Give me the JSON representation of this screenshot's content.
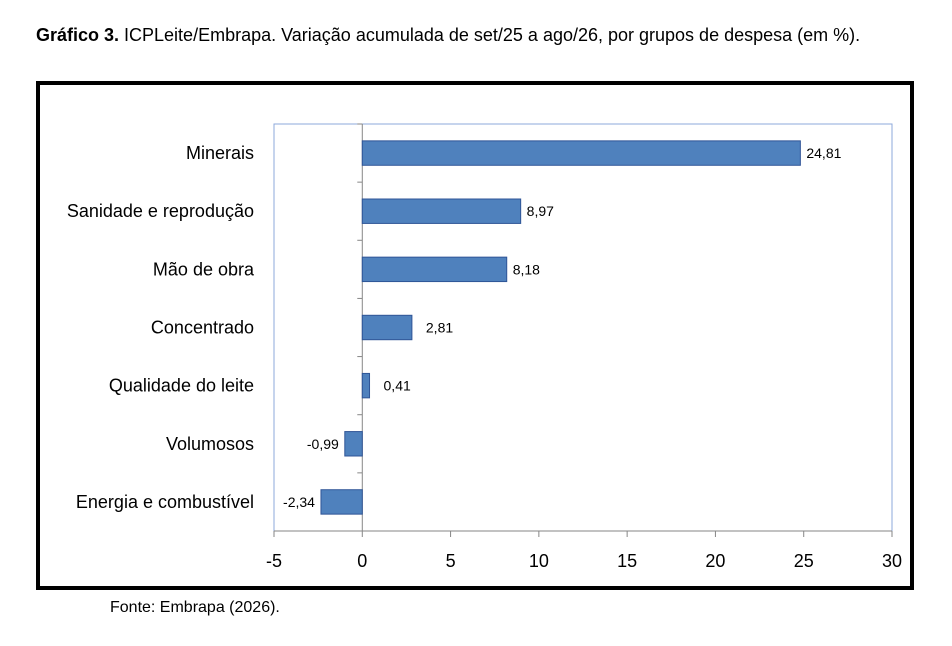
{
  "caption": {
    "label": "Gráfico 3.",
    "text": " ICPLeite/Embrapa. Variação acumulada de set/25 a ago/26, por grupos de despesa (em %)."
  },
  "source": "Fonte: Embrapa (2026).",
  "colors": {
    "bar": "#4f81bd",
    "bar_edge": "#2f5597",
    "axis": "#868686",
    "plot_border": "#8ea9db"
  },
  "chart_data": {
    "type": "bar",
    "orientation": "horizontal",
    "categories": [
      "Minerais",
      "Sanidade e reprodução",
      "Mão de obra",
      "Concentrado",
      "Qualidade do leite",
      "Volumosos",
      "Energia e combustível"
    ],
    "values": [
      24.81,
      8.97,
      8.18,
      2.81,
      0.41,
      -0.99,
      -2.34
    ],
    "value_labels": [
      "24,81",
      "8,97",
      "8,18",
      "2,81",
      "0,41",
      "-0,99",
      "-2,34"
    ],
    "xlim": [
      -5,
      30
    ],
    "xticks": [
      -5,
      0,
      5,
      10,
      15,
      20,
      25,
      30
    ],
    "xtick_labels": [
      "-5",
      "0",
      "5",
      "10",
      "15",
      "20",
      "25",
      "30"
    ],
    "title": "",
    "xlabel": "",
    "ylabel": "",
    "grid": false,
    "legend": "none"
  }
}
